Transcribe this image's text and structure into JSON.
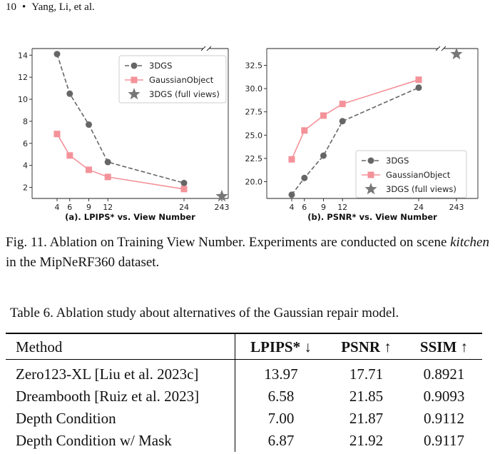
{
  "header": {
    "page_number": "10",
    "separator": "•",
    "authors": "Yang, Li, et al."
  },
  "chart_data": [
    {
      "type": "line",
      "title": "(a). LPIPS* vs. View Number",
      "xlabel": "",
      "ylabel": "",
      "x_ticks": [
        "4",
        "6",
        "9",
        "12",
        "24",
        "243"
      ],
      "y_ticks": [
        "2",
        "4",
        "6",
        "8",
        "10",
        "12",
        "14"
      ],
      "ylim": [
        1.0,
        14.6
      ],
      "axis_break": "between 24 and 243",
      "legend_position": "top-right",
      "series": [
        {
          "name": "3DGS",
          "x": [
            4,
            6,
            9,
            12,
            24
          ],
          "values": [
            14.1,
            10.5,
            7.7,
            4.3,
            2.4
          ],
          "color": "#666666",
          "style": "dashed",
          "marker": "circle"
        },
        {
          "name": "GaussianObject",
          "x": [
            4,
            6,
            9,
            12,
            24
          ],
          "values": [
            6.85,
            4.9,
            3.6,
            2.95,
            1.85
          ],
          "color": "#f4929a",
          "style": "solid",
          "marker": "square"
        },
        {
          "name": "3DGS (full views)",
          "x": [
            243
          ],
          "values": [
            1.2
          ],
          "color": "#777777",
          "style": "none",
          "marker": "star"
        }
      ]
    },
    {
      "type": "line",
      "title": "(b). PSNR* vs. View Number",
      "xlabel": "",
      "ylabel": "",
      "x_ticks": [
        "4",
        "6",
        "9",
        "12",
        "24",
        "243"
      ],
      "y_ticks": [
        "20.0",
        "22.5",
        "25.0",
        "27.5",
        "30.0",
        "32.5"
      ],
      "ylim": [
        18.2,
        34.3
      ],
      "axis_break": "between 24 and 243",
      "legend_position": "bottom-right",
      "series": [
        {
          "name": "3DGS",
          "x": [
            4,
            6,
            9,
            12,
            24
          ],
          "values": [
            18.6,
            20.4,
            22.8,
            26.5,
            30.1
          ],
          "color": "#666666",
          "style": "dashed",
          "marker": "circle"
        },
        {
          "name": "GaussianObject",
          "x": [
            4,
            6,
            9,
            12,
            24
          ],
          "values": [
            22.4,
            25.5,
            27.1,
            28.35,
            30.95
          ],
          "color": "#f4929a",
          "style": "solid",
          "marker": "square"
        },
        {
          "name": "3DGS (full views)",
          "x": [
            243
          ],
          "values": [
            33.7
          ],
          "color": "#777777",
          "style": "none",
          "marker": "star"
        }
      ]
    }
  ],
  "figure_caption": {
    "label": "Fig. 11.",
    "text_before": "Ablation on Training View Number. Experiments are conducted on scene",
    "scene": "kitchen",
    "text_after": "in the MipNeRF360 dataset."
  },
  "table": {
    "caption": "Table 6.  Ablation study about alternatives of the Gaussian repair model.",
    "headers": [
      "Method",
      "LPIPS* ↓",
      "PSNR ↑",
      "SSIM ↑"
    ],
    "rows": [
      [
        "Zero123-XL [Liu et al. 2023c]",
        "13.97",
        "17.71",
        "0.8921"
      ],
      [
        "Dreambooth [Ruiz et al. 2023]",
        "6.58",
        "21.85",
        "0.9093"
      ],
      [
        "Depth Condition",
        "7.00",
        "21.87",
        "0.9112"
      ],
      [
        "Depth Condition w/ Mask",
        "6.87",
        "21.92",
        "0.9117"
      ]
    ]
  }
}
